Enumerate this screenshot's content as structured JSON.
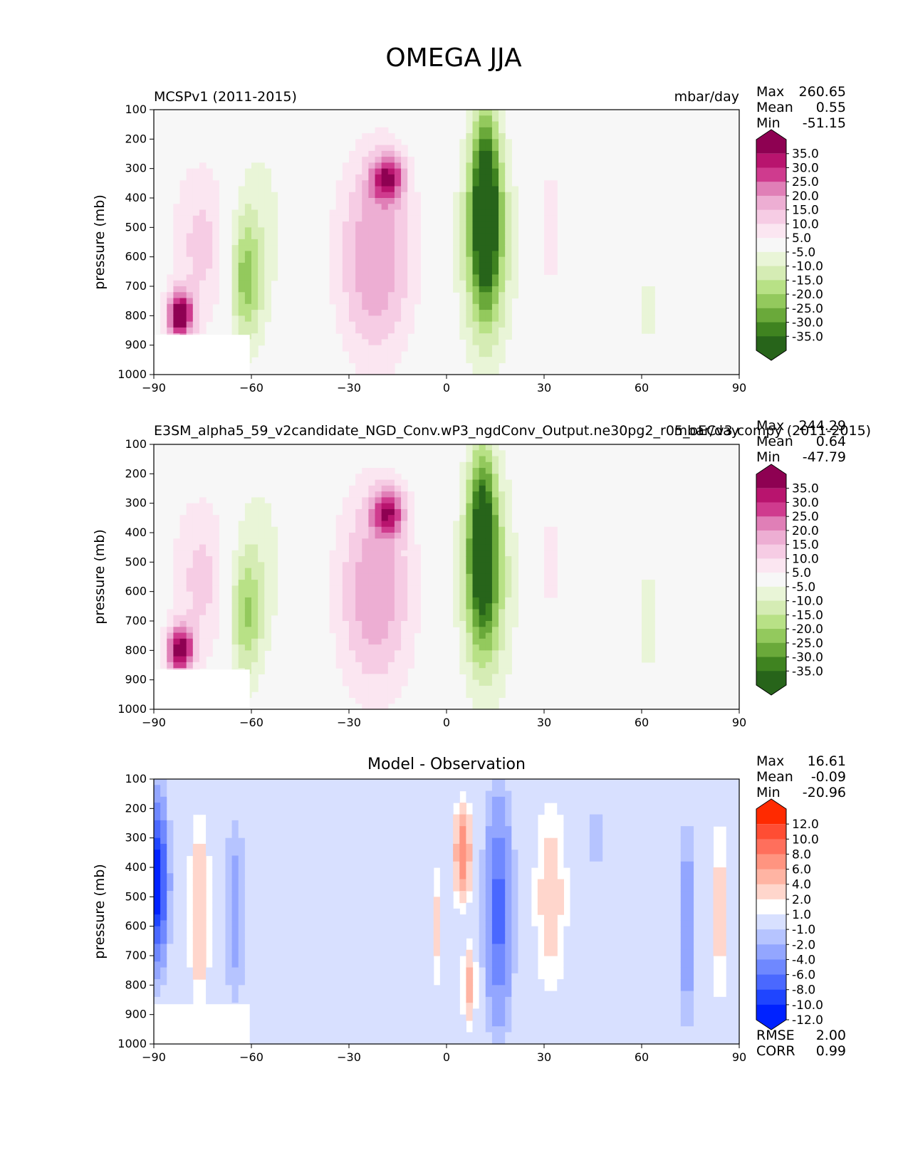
{
  "figure_title": "OMEGA JJA",
  "colors": {
    "ref_scale": [
      "#8e0152",
      "#b8146e",
      "#cf3b8e",
      "#e07fb7",
      "#edaed3",
      "#f6cce4",
      "#fbe6f1",
      "#f7f7f7",
      "#e9f5d7",
      "#d5ecb4",
      "#b8e186",
      "#93c95d",
      "#6aa93a",
      "#3f8320",
      "#27641a"
    ],
    "diff_scale": [
      "#ff2a00",
      "#ff4d33",
      "#ff6f5c",
      "#ff9480",
      "#ffb4a3",
      "#ffd6cc",
      "#ffffff",
      "#d8e0ff",
      "#b6c4ff",
      "#93a6ff",
      "#6f88ff",
      "#4a68ff",
      "#1f45ff",
      "#0022ff"
    ],
    "plot_bg": "#f7f7f7",
    "missing": "#ffffff"
  },
  "chart_data": [
    {
      "type": "heatmap",
      "panel": "test",
      "title_left": "MCSPv1 (2011-2015)",
      "title_center": "",
      "units": "mbar/day",
      "stats": {
        "max_label": "Max",
        "max": "260.65",
        "mean_label": "Mean",
        "mean": "0.55",
        "min_label": "Min",
        "min": "-51.15"
      },
      "ylabel": "pressure (mb)",
      "xlim": [
        -90,
        90
      ],
      "ylim": [
        1000,
        100
      ],
      "xticks": [
        "−90",
        "−60",
        "−30",
        "0",
        "30",
        "60",
        "90"
      ],
      "yticks": [
        "100",
        "200",
        "300",
        "400",
        "500",
        "600",
        "700",
        "800",
        "900",
        "1000"
      ],
      "colorbar_labels": [
        "35.0",
        "30.0",
        "25.0",
        "20.0",
        "15.0",
        "10.0",
        "5.0",
        "-5.0",
        "-10.0",
        "-15.0",
        "-20.0",
        "-25.0",
        "-30.0",
        "-35.0"
      ],
      "features": [
        {
          "lat": -75,
          "p": 560,
          "width": 10,
          "depth": 300,
          "value": 12
        },
        {
          "lat": -82,
          "p": 800,
          "width": 4,
          "depth": 80,
          "value": 40
        },
        {
          "lat": -62,
          "p": 680,
          "width": 5,
          "depth": 220,
          "value": -20
        },
        {
          "lat": -58,
          "p": 500,
          "width": 10,
          "depth": 380,
          "value": -7
        },
        {
          "lat": -22,
          "p": 600,
          "width": 12,
          "depth": 360,
          "value": 20
        },
        {
          "lat": -18,
          "p": 330,
          "width": 5,
          "depth": 80,
          "value": 28
        },
        {
          "lat": 12,
          "p": 420,
          "width": 4,
          "depth": 300,
          "value": -38
        },
        {
          "lat": 12,
          "p": 560,
          "width": 8,
          "depth": 380,
          "value": -22
        },
        {
          "lat": 32,
          "p": 500,
          "width": 3,
          "depth": 260,
          "value": 8
        },
        {
          "lat": 62,
          "p": 780,
          "width": 3,
          "depth": 300,
          "value": -6
        }
      ]
    },
    {
      "type": "heatmap",
      "panel": "reference",
      "title_left": "E3SM_alpha5_59_v2candidate_NGD_Conv.wP3_ngdConv_Output.ne30pg2_r05_oECv3.compy (2011-2015)",
      "title_center": "",
      "units": "mbar/day",
      "stats": {
        "max_label": "Max",
        "max": "244.29",
        "mean_label": "Mean",
        "mean": "0.64",
        "min_label": "Min",
        "min": "-47.79"
      },
      "ylabel": "pressure (mb)",
      "xlim": [
        -90,
        90
      ],
      "ylim": [
        1000,
        100
      ],
      "xticks": [
        "−90",
        "−60",
        "−30",
        "0",
        "30",
        "60",
        "90"
      ],
      "yticks": [
        "100",
        "200",
        "300",
        "400",
        "500",
        "600",
        "700",
        "800",
        "900",
        "1000"
      ],
      "colorbar_labels": [
        "35.0",
        "30.0",
        "25.0",
        "20.0",
        "15.0",
        "10.0",
        "5.0",
        "-5.0",
        "-10.0",
        "-15.0",
        "-20.0",
        "-25.0",
        "-30.0",
        "-35.0"
      ],
      "features": [
        {
          "lat": -75,
          "p": 560,
          "width": 10,
          "depth": 300,
          "value": 12
        },
        {
          "lat": -82,
          "p": 800,
          "width": 4,
          "depth": 80,
          "value": 38
        },
        {
          "lat": -62,
          "p": 680,
          "width": 5,
          "depth": 220,
          "value": -18
        },
        {
          "lat": -58,
          "p": 500,
          "width": 10,
          "depth": 380,
          "value": -7
        },
        {
          "lat": -22,
          "p": 600,
          "width": 12,
          "depth": 360,
          "value": 19
        },
        {
          "lat": -18,
          "p": 330,
          "width": 5,
          "depth": 80,
          "value": 27
        },
        {
          "lat": 11,
          "p": 420,
          "width": 4,
          "depth": 300,
          "value": -34
        },
        {
          "lat": 12,
          "p": 560,
          "width": 8,
          "depth": 380,
          "value": -21
        },
        {
          "lat": 32,
          "p": 500,
          "width": 3,
          "depth": 260,
          "value": 7
        },
        {
          "lat": 62,
          "p": 700,
          "width": 3,
          "depth": 300,
          "value": -7
        }
      ]
    },
    {
      "type": "heatmap",
      "panel": "difference",
      "title_left": "",
      "title_center": "Model - Observation",
      "units": "",
      "stats": {
        "max_label": "Max",
        "max": "16.61",
        "mean_label": "Mean",
        "mean": "-0.09",
        "min_label": "Min",
        "min": "-20.96"
      },
      "ylabel": "pressure (mb)",
      "xlim": [
        -90,
        90
      ],
      "ylim": [
        1000,
        100
      ],
      "xticks": [
        "−90",
        "−60",
        "−30",
        "0",
        "30",
        "60",
        "90"
      ],
      "yticks": [
        "100",
        "200",
        "300",
        "400",
        "500",
        "600",
        "700",
        "800",
        "900",
        "1000"
      ],
      "colorbar_labels": [
        "12.0",
        "10.0",
        "8.0",
        "6.0",
        "4.0",
        "2.0",
        "1.0",
        "-1.0",
        "-2.0",
        "-4.0",
        "-6.0",
        "-8.0",
        "-10.0",
        "-12.0"
      ],
      "rmse_label": "RMSE",
      "rmse": "2.00",
      "corr_label": "CORR",
      "corr": "0.99",
      "features": [
        {
          "lat": -89,
          "p": 450,
          "width": 3,
          "depth": 250,
          "value": -12
        },
        {
          "lat": -76,
          "p": 550,
          "width": 3,
          "depth": 300,
          "value": 4
        },
        {
          "lat": -65,
          "p": 550,
          "width": 3,
          "depth": 300,
          "value": -3
        },
        {
          "lat": 5,
          "p": 350,
          "width": 2.5,
          "depth": 150,
          "value": 8
        },
        {
          "lat": 7,
          "p": 800,
          "width": 2,
          "depth": 120,
          "value": 5
        },
        {
          "lat": 16,
          "p": 550,
          "width": 4,
          "depth": 350,
          "value": -7
        },
        {
          "lat": 32,
          "p": 500,
          "width": 5,
          "depth": 320,
          "value": 3
        },
        {
          "lat": 46,
          "p": 300,
          "width": 2.5,
          "depth": 120,
          "value": -1.8
        },
        {
          "lat": 74,
          "p": 600,
          "width": 2.5,
          "depth": 300,
          "value": -4
        },
        {
          "lat": 84,
          "p": 550,
          "width": 2.5,
          "depth": 300,
          "value": 3
        },
        {
          "lat": -3,
          "p": 600,
          "width": 2,
          "depth": 200,
          "value": 2.5
        }
      ]
    }
  ]
}
